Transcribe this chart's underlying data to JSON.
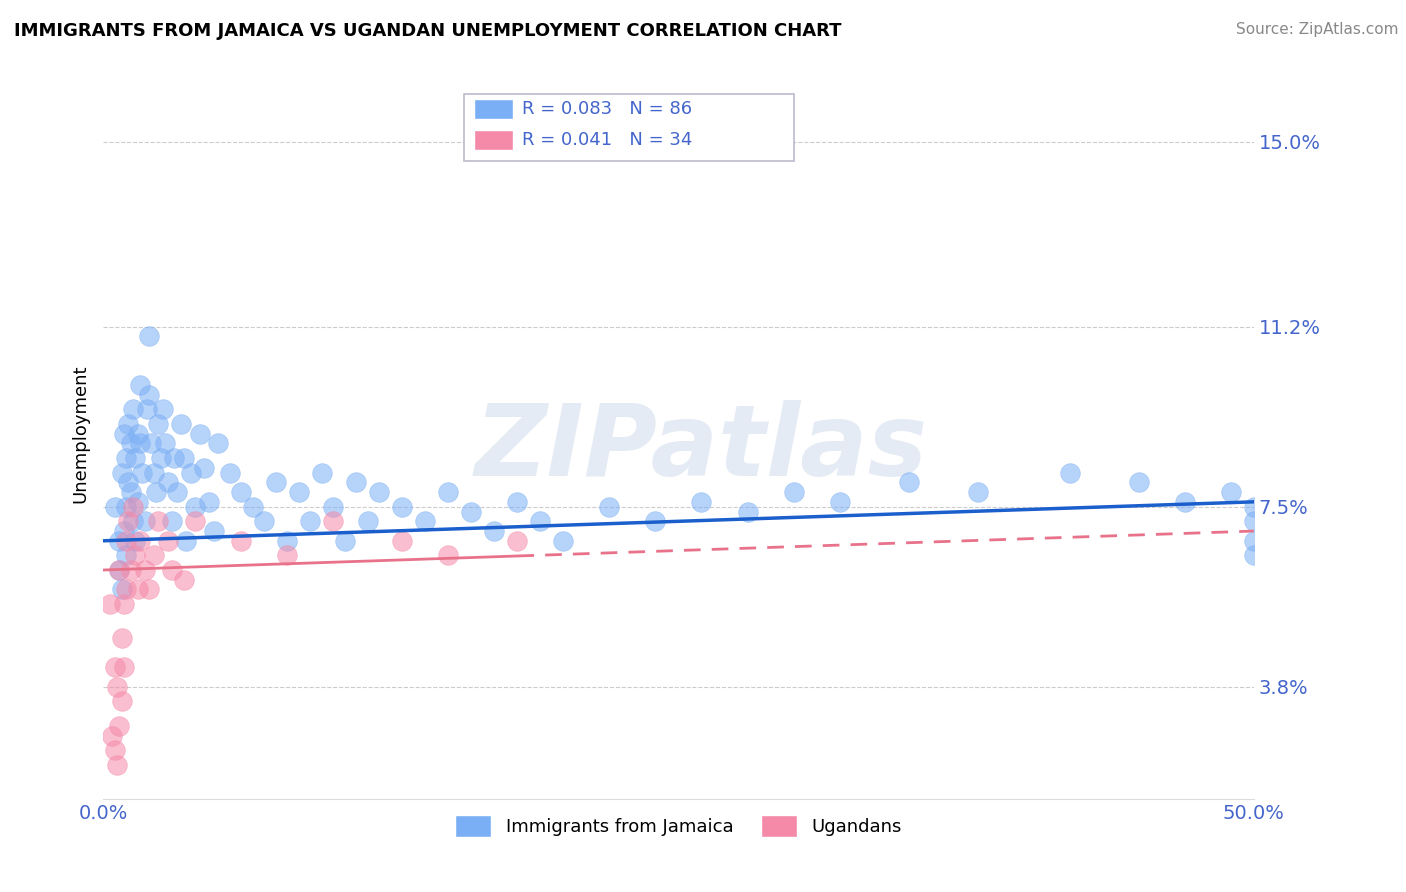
{
  "title": "IMMIGRANTS FROM JAMAICA VS UGANDAN UNEMPLOYMENT CORRELATION CHART",
  "source": "Source: ZipAtlas.com",
  "xlabel": "",
  "ylabel": "Unemployment",
  "xlim": [
    0.0,
    0.5
  ],
  "ylim": [
    0.015,
    0.165
  ],
  "yticks": [
    0.038,
    0.075,
    0.112,
    0.15
  ],
  "ytick_labels": [
    "3.8%",
    "7.5%",
    "11.2%",
    "15.0%"
  ],
  "xticks": [
    0.0,
    0.5
  ],
  "xtick_labels": [
    "0.0%",
    "50.0%"
  ],
  "r_blue": 0.083,
  "n_blue": 86,
  "r_pink": 0.041,
  "n_pink": 34,
  "blue_color": "#7BAFF5",
  "pink_color": "#F589A8",
  "blue_line_color": "#1A5FCC",
  "pink_line_color": "#E8728A",
  "axis_color": "#4466CC",
  "watermark": "ZIPatlas",
  "legend_label_blue": "Immigrants from Jamaica",
  "legend_label_pink": "Ugandans",
  "blue_trend_start": 0.068,
  "blue_trend_end": 0.076,
  "pink_trend_start": 0.062,
  "pink_trend_end": 0.07,
  "blue_x": [
    0.005,
    0.007,
    0.007,
    0.008,
    0.008,
    0.009,
    0.009,
    0.01,
    0.01,
    0.01,
    0.011,
    0.011,
    0.012,
    0.012,
    0.013,
    0.013,
    0.014,
    0.014,
    0.015,
    0.015,
    0.016,
    0.016,
    0.017,
    0.018,
    0.019,
    0.02,
    0.02,
    0.021,
    0.022,
    0.023,
    0.024,
    0.025,
    0.026,
    0.027,
    0.028,
    0.03,
    0.031,
    0.032,
    0.034,
    0.035,
    0.036,
    0.038,
    0.04,
    0.042,
    0.044,
    0.046,
    0.048,
    0.05,
    0.055,
    0.06,
    0.065,
    0.07,
    0.075,
    0.08,
    0.085,
    0.09,
    0.095,
    0.1,
    0.105,
    0.11,
    0.115,
    0.12,
    0.13,
    0.14,
    0.15,
    0.16,
    0.17,
    0.18,
    0.19,
    0.2,
    0.22,
    0.24,
    0.26,
    0.28,
    0.3,
    0.32,
    0.35,
    0.38,
    0.42,
    0.45,
    0.47,
    0.49,
    0.5,
    0.5,
    0.5,
    0.5
  ],
  "blue_y": [
    0.075,
    0.068,
    0.062,
    0.082,
    0.058,
    0.09,
    0.07,
    0.075,
    0.085,
    0.065,
    0.092,
    0.08,
    0.078,
    0.088,
    0.072,
    0.095,
    0.085,
    0.068,
    0.09,
    0.076,
    0.1,
    0.088,
    0.082,
    0.072,
    0.095,
    0.11,
    0.098,
    0.088,
    0.082,
    0.078,
    0.092,
    0.085,
    0.095,
    0.088,
    0.08,
    0.072,
    0.085,
    0.078,
    0.092,
    0.085,
    0.068,
    0.082,
    0.075,
    0.09,
    0.083,
    0.076,
    0.07,
    0.088,
    0.082,
    0.078,
    0.075,
    0.072,
    0.08,
    0.068,
    0.078,
    0.072,
    0.082,
    0.075,
    0.068,
    0.08,
    0.072,
    0.078,
    0.075,
    0.072,
    0.078,
    0.074,
    0.07,
    0.076,
    0.072,
    0.068,
    0.075,
    0.072,
    0.076,
    0.074,
    0.078,
    0.076,
    0.08,
    0.078,
    0.082,
    0.08,
    0.076,
    0.078,
    0.075,
    0.072,
    0.068,
    0.065
  ],
  "pink_x": [
    0.003,
    0.004,
    0.005,
    0.005,
    0.006,
    0.006,
    0.007,
    0.007,
    0.008,
    0.008,
    0.009,
    0.009,
    0.01,
    0.01,
    0.011,
    0.012,
    0.013,
    0.014,
    0.015,
    0.016,
    0.018,
    0.02,
    0.022,
    0.024,
    0.028,
    0.03,
    0.035,
    0.04,
    0.06,
    0.08,
    0.1,
    0.13,
    0.15,
    0.18
  ],
  "pink_y": [
    0.055,
    0.028,
    0.042,
    0.025,
    0.038,
    0.022,
    0.062,
    0.03,
    0.048,
    0.035,
    0.055,
    0.042,
    0.068,
    0.058,
    0.072,
    0.062,
    0.075,
    0.065,
    0.058,
    0.068,
    0.062,
    0.058,
    0.065,
    0.072,
    0.068,
    0.062,
    0.06,
    0.072,
    0.068,
    0.065,
    0.072,
    0.068,
    0.065,
    0.068
  ]
}
